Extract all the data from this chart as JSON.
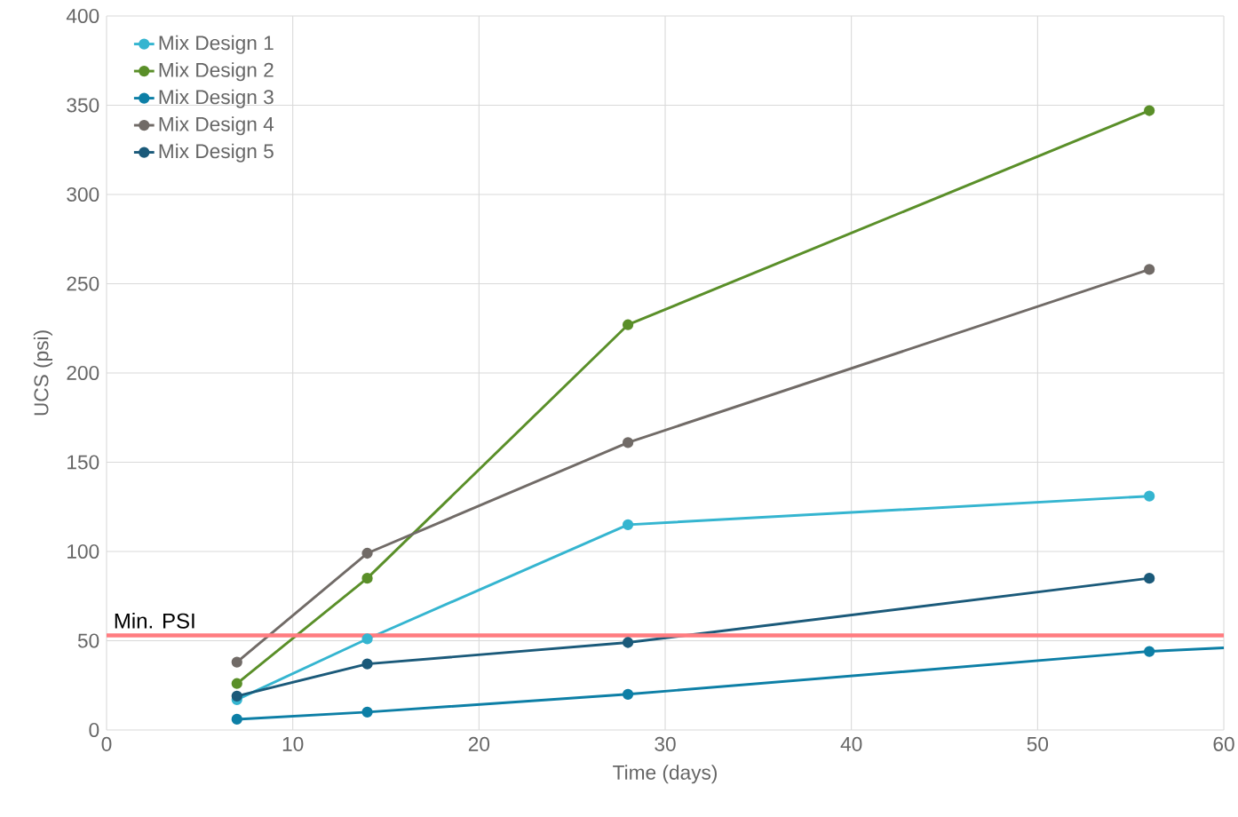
{
  "chart_data": {
    "type": "line",
    "xlabel": "Time (days)",
    "ylabel": "UCS (psi)",
    "x": [
      7,
      14,
      28,
      56
    ],
    "series": [
      {
        "name": "Mix Design 1",
        "color": "#35b5d0",
        "values": [
          17,
          51,
          115,
          131
        ]
      },
      {
        "name": "Mix Design 2",
        "color": "#5a8f29",
        "values": [
          26,
          85,
          227,
          347
        ]
      },
      {
        "name": "Mix Design 3",
        "color": "#0d7fa6",
        "values": [
          6,
          10,
          20,
          44
        ]
      },
      {
        "name": "Mix Design 4",
        "color": "#716b67",
        "values": [
          38,
          99,
          161,
          258
        ]
      },
      {
        "name": "Mix Design 5",
        "color": "#1b5a7a",
        "values": [
          19,
          37,
          49,
          85
        ]
      },
      {
        "type": "line",
        "color": "#0d7fa6",
        "x": [
          56,
          60
        ],
        "values": [
          44,
          46
        ],
        "marker": "none"
      }
    ],
    "xlim": [
      0,
      60
    ],
    "ylim": [
      0,
      400
    ],
    "xticks": [
      0,
      10,
      20,
      30,
      40,
      50,
      60
    ],
    "yticks": [
      0,
      50,
      100,
      150,
      200,
      250,
      300,
      350,
      400
    ],
    "ref_lines": [
      {
        "axis": "y",
        "value": 53,
        "label": "Min. PSI",
        "color": "#ff7c80"
      }
    ],
    "grid": true,
    "legend": "top left",
    "marker": "circle",
    "line_style": "solid"
  }
}
